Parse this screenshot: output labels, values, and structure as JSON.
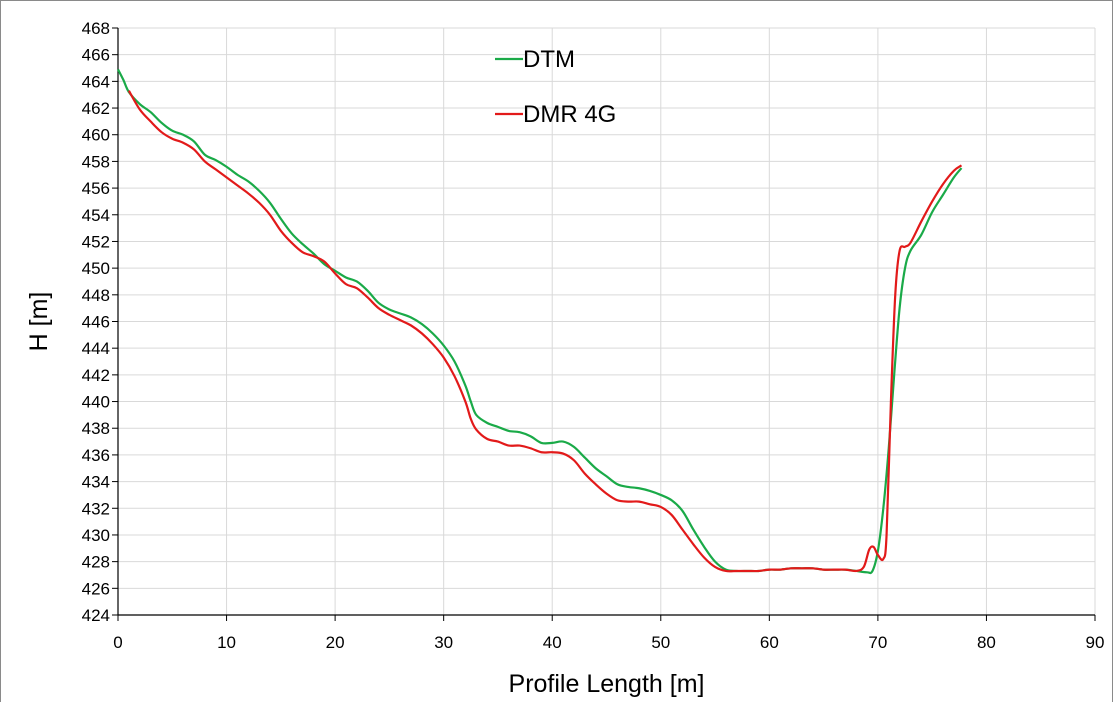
{
  "chart_data": {
    "type": "line",
    "xlabel": "Profile Length [m]",
    "ylabel": "H [m]",
    "xlim": [
      0,
      90
    ],
    "ylim": [
      424,
      468
    ],
    "x_ticks": [
      "0",
      "10",
      "20",
      "30",
      "40",
      "50",
      "60",
      "70",
      "80",
      "90"
    ],
    "y_ticks": [
      "424",
      "426",
      "428",
      "430",
      "432",
      "434",
      "436",
      "438",
      "440",
      "442",
      "444",
      "446",
      "448",
      "450",
      "452",
      "454",
      "456",
      "458",
      "460",
      "462",
      "464",
      "466",
      "468"
    ],
    "grid": true,
    "legend_position": "top-center",
    "series": [
      {
        "name": "DTM",
        "color": "#1aaa48",
        "points": [
          [
            0,
            464.9
          ],
          [
            0.5,
            464.1
          ],
          [
            1,
            463.2
          ],
          [
            2,
            462.3
          ],
          [
            3,
            461.7
          ],
          [
            4,
            460.9
          ],
          [
            5,
            460.3
          ],
          [
            6,
            460.0
          ],
          [
            7,
            459.5
          ],
          [
            8,
            458.5
          ],
          [
            9,
            458.1
          ],
          [
            10,
            457.6
          ],
          [
            11,
            457.0
          ],
          [
            12,
            456.5
          ],
          [
            13,
            455.8
          ],
          [
            14,
            454.9
          ],
          [
            15,
            453.7
          ],
          [
            16,
            452.6
          ],
          [
            17,
            451.8
          ],
          [
            18,
            451.1
          ],
          [
            19,
            450.3
          ],
          [
            20,
            449.8
          ],
          [
            21,
            449.3
          ],
          [
            22,
            449.0
          ],
          [
            23,
            448.3
          ],
          [
            24,
            447.4
          ],
          [
            25,
            446.9
          ],
          [
            26,
            446.6
          ],
          [
            27,
            446.3
          ],
          [
            28,
            445.8
          ],
          [
            29,
            445.1
          ],
          [
            30,
            444.2
          ],
          [
            31,
            443.0
          ],
          [
            32,
            441.2
          ],
          [
            32.5,
            440.0
          ],
          [
            33,
            439.0
          ],
          [
            34,
            438.4
          ],
          [
            35,
            438.1
          ],
          [
            36,
            437.8
          ],
          [
            37,
            437.7
          ],
          [
            38,
            437.4
          ],
          [
            39,
            436.9
          ],
          [
            40,
            436.9
          ],
          [
            41,
            437.0
          ],
          [
            42,
            436.6
          ],
          [
            43,
            435.8
          ],
          [
            44,
            435.0
          ],
          [
            45,
            434.4
          ],
          [
            46,
            433.8
          ],
          [
            47,
            433.6
          ],
          [
            48,
            433.5
          ],
          [
            49,
            433.3
          ],
          [
            50,
            433.0
          ],
          [
            51,
            432.6
          ],
          [
            52,
            431.8
          ],
          [
            53,
            430.4
          ],
          [
            54,
            429.1
          ],
          [
            55,
            428.0
          ],
          [
            56,
            427.4
          ],
          [
            57,
            427.3
          ],
          [
            58,
            427.3
          ],
          [
            59,
            427.3
          ],
          [
            60,
            427.4
          ],
          [
            61,
            427.4
          ],
          [
            62,
            427.5
          ],
          [
            63,
            427.5
          ],
          [
            64,
            427.5
          ],
          [
            65,
            427.4
          ],
          [
            66,
            427.4
          ],
          [
            67,
            427.4
          ],
          [
            68,
            427.3
          ],
          [
            69,
            427.2
          ],
          [
            69.5,
            427.3
          ],
          [
            70,
            428.8
          ],
          [
            70.5,
            432.0
          ],
          [
            71,
            436.5
          ],
          [
            71.5,
            442.0
          ],
          [
            72,
            447.0
          ],
          [
            72.5,
            450.0
          ],
          [
            73,
            451.3
          ],
          [
            74,
            452.5
          ],
          [
            75,
            454.2
          ],
          [
            76,
            455.5
          ],
          [
            77,
            456.8
          ],
          [
            77.7,
            457.5
          ]
        ]
      },
      {
        "name": "DMR 4G",
        "color": "#e21a1a",
        "points": [
          [
            1,
            463.3
          ],
          [
            2,
            461.9
          ],
          [
            3,
            461.0
          ],
          [
            4,
            460.2
          ],
          [
            5,
            459.7
          ],
          [
            6,
            459.4
          ],
          [
            7,
            458.9
          ],
          [
            8,
            458.0
          ],
          [
            9,
            457.4
          ],
          [
            10,
            456.8
          ],
          [
            11,
            456.2
          ],
          [
            12,
            455.6
          ],
          [
            13,
            454.9
          ],
          [
            14,
            454.0
          ],
          [
            15,
            452.8
          ],
          [
            16,
            451.9
          ],
          [
            17,
            451.2
          ],
          [
            18,
            450.9
          ],
          [
            19,
            450.5
          ],
          [
            20,
            449.6
          ],
          [
            21,
            448.8
          ],
          [
            22,
            448.5
          ],
          [
            23,
            447.8
          ],
          [
            24,
            447.0
          ],
          [
            25,
            446.5
          ],
          [
            26,
            446.1
          ],
          [
            27,
            445.7
          ],
          [
            28,
            445.1
          ],
          [
            29,
            444.3
          ],
          [
            30,
            443.3
          ],
          [
            31,
            441.9
          ],
          [
            32,
            440.0
          ],
          [
            32.5,
            438.7
          ],
          [
            33,
            437.9
          ],
          [
            34,
            437.2
          ],
          [
            35,
            437.0
          ],
          [
            36,
            436.7
          ],
          [
            37,
            436.7
          ],
          [
            38,
            436.5
          ],
          [
            39,
            436.2
          ],
          [
            40,
            436.2
          ],
          [
            41,
            436.1
          ],
          [
            42,
            435.6
          ],
          [
            43,
            434.6
          ],
          [
            44,
            433.8
          ],
          [
            45,
            433.1
          ],
          [
            46,
            432.6
          ],
          [
            47,
            432.5
          ],
          [
            48,
            432.5
          ],
          [
            49,
            432.3
          ],
          [
            50,
            432.1
          ],
          [
            51,
            431.5
          ],
          [
            52,
            430.4
          ],
          [
            53,
            429.3
          ],
          [
            54,
            428.3
          ],
          [
            55,
            427.6
          ],
          [
            56,
            427.3
          ],
          [
            57,
            427.3
          ],
          [
            58,
            427.3
          ],
          [
            59,
            427.3
          ],
          [
            60,
            427.4
          ],
          [
            61,
            427.4
          ],
          [
            62,
            427.5
          ],
          [
            63,
            427.5
          ],
          [
            64,
            427.5
          ],
          [
            65,
            427.4
          ],
          [
            66,
            427.4
          ],
          [
            67,
            427.4
          ],
          [
            68,
            427.3
          ],
          [
            68.7,
            427.6
          ],
          [
            69.2,
            428.9
          ],
          [
            69.6,
            429.1
          ],
          [
            70,
            428.5
          ],
          [
            70.5,
            428.2
          ],
          [
            70.8,
            430.0
          ],
          [
            71.2,
            440.0
          ],
          [
            71.6,
            448.0
          ],
          [
            72,
            451.3
          ],
          [
            72.5,
            451.6
          ],
          [
            73,
            451.9
          ],
          [
            74,
            453.5
          ],
          [
            75,
            455.0
          ],
          [
            76,
            456.3
          ],
          [
            77,
            457.3
          ],
          [
            77.7,
            457.7
          ]
        ]
      }
    ]
  }
}
